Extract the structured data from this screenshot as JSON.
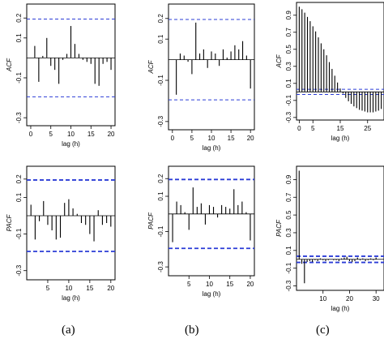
{
  "figure_labels": [
    "(a)",
    "(b)",
    "(c)"
  ],
  "colors": {
    "bound": "#2b3cd6",
    "bar": "#000000",
    "frame": "#000000"
  },
  "chart_data": [
    {
      "id": "a-acf",
      "type": "bar",
      "panel": "(a)",
      "ylabel": "ACF",
      "xlabel": "lag (h)",
      "xlim": [
        -1,
        21
      ],
      "ylim": [
        -0.34,
        0.27
      ],
      "xticks": [
        0,
        5,
        10,
        15,
        20
      ],
      "yticks": [
        -0.3,
        -0.1,
        0.1,
        0.2
      ],
      "ytick_labels": [
        "-0.3",
        "-0.1",
        "0.1",
        "0.2"
      ],
      "bounds": [
        0.195,
        -0.195
      ],
      "bound_width": 1,
      "bound_dash": "4 3",
      "x": [
        1,
        2,
        3,
        4,
        5,
        6,
        7,
        8,
        9,
        10,
        11,
        12,
        13,
        14,
        15,
        16,
        17,
        18,
        19,
        20
      ],
      "values": [
        0.06,
        -0.12,
        0.01,
        0.1,
        -0.04,
        -0.06,
        -0.13,
        -0.01,
        0.02,
        0.16,
        0.07,
        0.02,
        -0.01,
        -0.02,
        -0.03,
        -0.13,
        -0.14,
        -0.03,
        -0.02,
        -0.06
      ]
    },
    {
      "id": "b-acf",
      "type": "bar",
      "panel": "(b)",
      "ylabel": "ACF",
      "xlabel": "lag (h)",
      "xlim": [
        -1,
        21
      ],
      "ylim": [
        -0.34,
        0.27
      ],
      "xticks": [
        0,
        5,
        10,
        15,
        20
      ],
      "yticks": [
        -0.3,
        -0.1,
        0.1,
        0.2
      ],
      "ytick_labels": [
        "-0.3",
        "-0.1",
        "0.1",
        "0.2"
      ],
      "bounds": [
        0.195,
        -0.195
      ],
      "bound_width": 1,
      "bound_dash": "4 3",
      "x": [
        1,
        2,
        3,
        4,
        5,
        6,
        7,
        8,
        9,
        10,
        11,
        12,
        13,
        14,
        15,
        16,
        17,
        18,
        19,
        20
      ],
      "values": [
        -0.17,
        0.03,
        0.02,
        -0.01,
        -0.07,
        0.18,
        0.03,
        0.05,
        -0.04,
        0.04,
        0.03,
        -0.03,
        0.05,
        0.01,
        0.04,
        0.07,
        0.05,
        0.09,
        0.02,
        -0.14
      ]
    },
    {
      "id": "c-acf",
      "type": "bar",
      "panel": "(c)",
      "ylabel": "ACF",
      "xlabel": "lag (h)",
      "xlim": [
        -1,
        31
      ],
      "ylim": [
        -0.33,
        1.05
      ],
      "xticks": [
        0,
        5,
        15,
        25
      ],
      "yticks": [
        -0.3,
        -0.1,
        0.1,
        0.3,
        0.5,
        0.7,
        0.9
      ],
      "ytick_labels": [
        "-0.3",
        "-0.1",
        "0.1",
        "0.3",
        "0.5",
        "0.7",
        "0.9"
      ],
      "bounds": [
        0.03,
        -0.03
      ],
      "bound_width": 1,
      "bound_dash": "4 3",
      "x": [
        0,
        1,
        2,
        3,
        4,
        5,
        6,
        7,
        8,
        9,
        10,
        11,
        12,
        13,
        14,
        15,
        16,
        17,
        18,
        19,
        20,
        21,
        22,
        23,
        24,
        25,
        26,
        27,
        28,
        29,
        30
      ],
      "values": [
        1.0,
        0.97,
        0.93,
        0.88,
        0.83,
        0.77,
        0.71,
        0.64,
        0.57,
        0.5,
        0.43,
        0.35,
        0.27,
        0.19,
        0.11,
        0.04,
        -0.02,
        -0.07,
        -0.11,
        -0.14,
        -0.17,
        -0.19,
        -0.21,
        -0.22,
        -0.23,
        -0.24,
        -0.24,
        -0.24,
        -0.23,
        -0.22,
        -0.2
      ]
    },
    {
      "id": "a-pacf",
      "type": "bar",
      "panel": "(a)",
      "ylabel": "PACF",
      "xlabel": "lag (h)",
      "xlim": [
        0,
        21
      ],
      "ylim": [
        -0.35,
        0.27
      ],
      "xticks": [
        5,
        10,
        15,
        20
      ],
      "yticks": [
        -0.3,
        -0.1,
        0.1,
        0.2
      ],
      "ytick_labels": [
        "-0.3",
        "-0.1",
        "0.1",
        "0.2"
      ],
      "bounds": [
        0.195,
        -0.195
      ],
      "bound_width": 1.8,
      "bound_dash": "5 3",
      "x": [
        1,
        2,
        3,
        4,
        5,
        6,
        7,
        8,
        9,
        10,
        11,
        12,
        13,
        14,
        15,
        16,
        17,
        18,
        19,
        20
      ],
      "values": [
        0.06,
        -0.13,
        -0.03,
        0.08,
        -0.05,
        -0.08,
        -0.13,
        -0.12,
        0.07,
        0.09,
        0.04,
        0.01,
        -0.04,
        -0.05,
        -0.1,
        -0.14,
        0.03,
        -0.05,
        -0.04,
        -0.06
      ]
    },
    {
      "id": "b-pacf",
      "type": "bar",
      "panel": "(b)",
      "ylabel": "PACF",
      "xlabel": "lag (h)",
      "xlim": [
        0,
        21
      ],
      "ylim": [
        -0.35,
        0.27
      ],
      "xticks": [
        5,
        10,
        15,
        20
      ],
      "yticks": [
        -0.3,
        -0.1,
        0.1,
        0.2
      ],
      "ytick_labels": [
        "-0.3",
        "-0.1",
        "0.1",
        "0.2"
      ],
      "bounds": [
        0.195,
        -0.195
      ],
      "bound_width": 1.8,
      "bound_dash": "5 3",
      "x": [
        1,
        2,
        3,
        4,
        5,
        6,
        7,
        8,
        9,
        10,
        11,
        12,
        13,
        14,
        15,
        16,
        17,
        18,
        19,
        20
      ],
      "values": [
        -0.16,
        0.07,
        0.05,
        0.01,
        -0.09,
        0.15,
        0.04,
        0.06,
        -0.06,
        0.05,
        0.04,
        -0.02,
        0.05,
        0.04,
        0.03,
        0.14,
        0.05,
        0.07,
        0.01,
        -0.15
      ]
    },
    {
      "id": "c-pacf",
      "type": "bar",
      "panel": "(c)",
      "ylabel": "PACF",
      "xlabel": "lag (h)",
      "xlim": [
        0,
        33
      ],
      "ylim": [
        -0.35,
        1.05
      ],
      "xticks": [
        10,
        20,
        30
      ],
      "yticks": [
        -0.3,
        -0.1,
        0.1,
        0.3,
        0.5,
        0.7,
        0.9
      ],
      "ytick_labels": [
        "-0.3",
        "-0.1",
        "0.1",
        "0.3",
        "0.5",
        "0.7",
        "0.9"
      ],
      "bounds": [
        0.035,
        -0.035
      ],
      "bound_width": 1.8,
      "bound_dash": "5 3",
      "x": [
        1,
        2,
        3,
        4,
        5,
        6,
        7,
        8,
        9,
        10,
        11,
        12,
        13,
        14,
        15,
        16,
        17,
        18,
        19,
        20,
        21,
        22,
        23,
        24,
        25,
        26,
        27,
        28,
        29,
        30
      ],
      "values": [
        1.0,
        -0.05,
        -0.27,
        -0.03,
        -0.02,
        -0.03,
        -0.01,
        -0.02,
        0.01,
        -0.01,
        -0.02,
        -0.01,
        0.0,
        -0.01,
        -0.01,
        -0.02,
        0.01,
        0.02,
        0.03,
        -0.02,
        -0.03,
        -0.02,
        0.02,
        -0.01,
        0.01,
        -0.02,
        -0.01,
        0.01,
        -0.01,
        0.02
      ]
    }
  ]
}
